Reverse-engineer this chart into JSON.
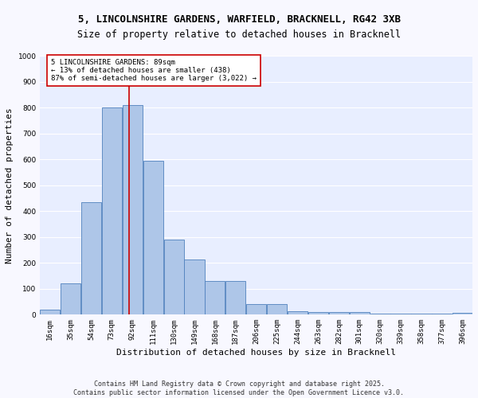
{
  "title_line1": "5, LINCOLNSHIRE GARDENS, WARFIELD, BRACKNELL, RG42 3XB",
  "title_line2": "Size of property relative to detached houses in Bracknell",
  "xlabel": "Distribution of detached houses by size in Bracknell",
  "ylabel": "Number of detached properties",
  "footer_line1": "Contains HM Land Registry data © Crown copyright and database right 2025.",
  "footer_line2": "Contains public sector information licensed under the Open Government Licence v3.0.",
  "bar_labels": [
    "16sqm",
    "35sqm",
    "54sqm",
    "73sqm",
    "92sqm",
    "111sqm",
    "130sqm",
    "149sqm",
    "168sqm",
    "187sqm",
    "206sqm",
    "225sqm",
    "244sqm",
    "263sqm",
    "282sqm",
    "301sqm",
    "320sqm",
    "339sqm",
    "358sqm",
    "377sqm",
    "396sqm"
  ],
  "bar_values": [
    20,
    120,
    435,
    800,
    810,
    595,
    290,
    215,
    130,
    130,
    42,
    40,
    12,
    10,
    10,
    10,
    5,
    5,
    3,
    3,
    8
  ],
  "bar_color": "#aec6e8",
  "bar_edge_color": "#4f81bd",
  "annotation_text": "5 LINCOLNSHIRE GARDENS: 89sqm\n← 13% of detached houses are smaller (438)\n87% of semi-detached houses are larger (3,022) →",
  "vline_x": 89,
  "vline_color": "#cc0000",
  "annotation_box_color": "#cc0000",
  "ylim": [
    0,
    1000
  ],
  "yticks": [
    0,
    100,
    200,
    300,
    400,
    500,
    600,
    700,
    800,
    900,
    1000
  ],
  "background_color": "#e8eeff",
  "grid_color": "#ffffff",
  "title_fontsize": 9,
  "subtitle_fontsize": 8.5,
  "axis_label_fontsize": 8,
  "tick_fontsize": 6.5,
  "annotation_fontsize": 6.5,
  "footer_fontsize": 6
}
